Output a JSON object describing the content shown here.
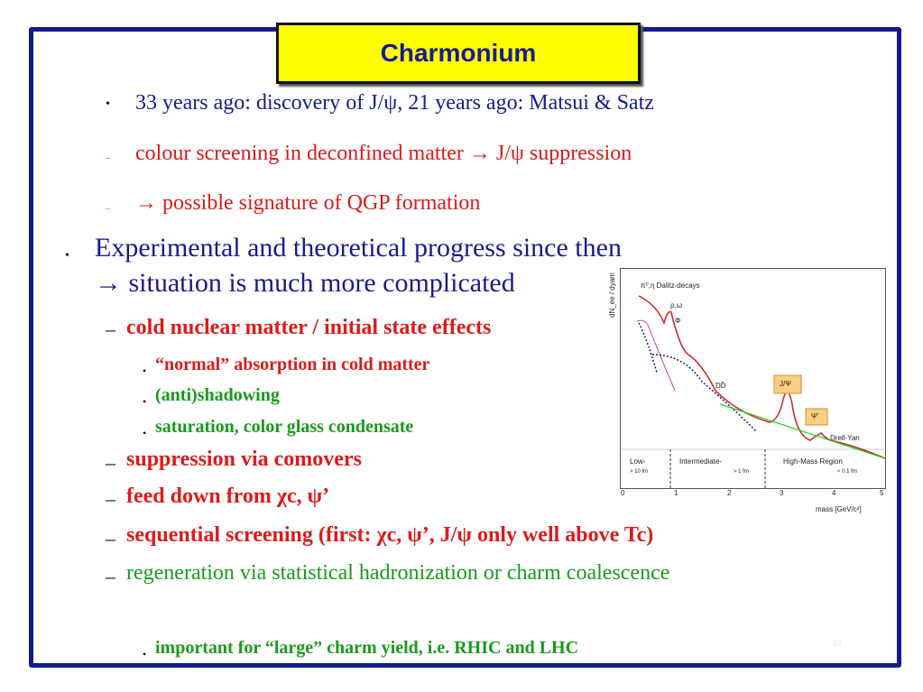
{
  "title": "Charmonium",
  "lines": [
    {
      "text": "33 years ago: discovery of J/ψ,  21 years ago: Matsui & Satz"
    },
    {
      "text": "colour screening in deconfined matter → J/ψ  suppression"
    },
    {
      "text": "→ possible signature of QGP formation"
    },
    {
      "text": "Experimental and theoretical progress  since then"
    },
    {
      "text": "→ situation is much more complicated"
    },
    {
      "text": "cold nuclear matter / initial state effects"
    },
    {
      "text": "“normal” absorption in cold matter"
    },
    {
      "text": "(anti)shadowing"
    },
    {
      "text": "saturation, color glass condensate"
    },
    {
      "text": "suppression via comovers"
    },
    {
      "text": "feed down from χc, ψ’"
    },
    {
      "text": "sequential screening (first: χc, ψ’, J/ψ only well above Tc)"
    },
    {
      "text": "regeneration via statistical hadronization or charm coalescence"
    },
    {
      "text": "important for “large” charm yield, i.e. RHIC and LHC"
    }
  ],
  "bullets": {
    "dot": "•",
    "dash": "–"
  },
  "figure": {
    "ylabel": "dN_ee / dyam",
    "xlabel": "mass [GeV/c²]",
    "labels": {
      "dalitz": "π⁰,η Dalitz-decays",
      "rho": "ρ,ω",
      "phi": "Φ",
      "dd": "DD̄",
      "jpsi": "J/Ψ",
      "psiprime": "Ψ'",
      "drellyan": "Drell-Yan"
    },
    "regions": [
      "Low-",
      "Intermediate-",
      "High-Mass Region"
    ],
    "region_sub": [
      "> 10 fm",
      "> 1 fm",
      "< 0.1 fm"
    ],
    "xticks": [
      "0",
      "1",
      "2",
      "3",
      "4",
      "5"
    ]
  },
  "page_number": "33",
  "colors": {
    "frame": "#131a8c",
    "title_bg": "#ffff00",
    "navy": "#1a1a8c",
    "red": "#dd1a1a",
    "green": "#1a9a1a"
  }
}
